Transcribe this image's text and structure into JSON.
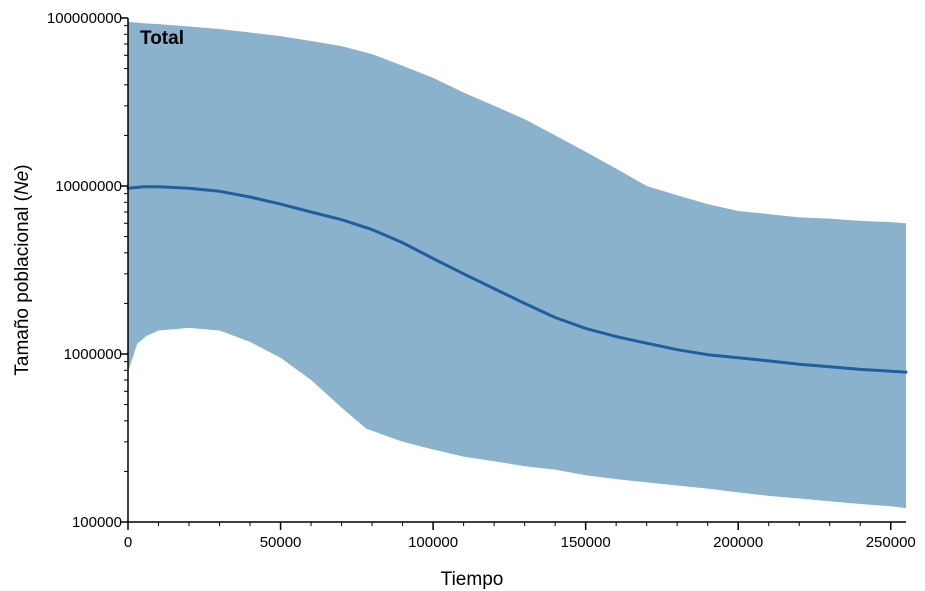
{
  "chart_data": {
    "type": "area",
    "title": "Total",
    "xlabel": "Tiempo",
    "ylabel_prefix": "Tamaño poblacional (",
    "ylabel_italic": "Ne",
    "ylabel_suffix": ")",
    "x_scale": "linear",
    "y_scale": "log",
    "xlim": [
      0,
      255000
    ],
    "ylim": [
      100000,
      100000000
    ],
    "x_ticks": [
      0,
      50000,
      100000,
      150000,
      200000,
      250000
    ],
    "x_tick_labels": [
      "0",
      "50000",
      "100000",
      "150000",
      "200000",
      "250000"
    ],
    "y_ticks": [
      100000,
      1000000,
      10000000,
      100000000
    ],
    "y_tick_labels": [
      "100000",
      "1000000",
      "10000000",
      "100000000"
    ],
    "grid": false,
    "colors": {
      "band": "#8bb2cc",
      "median": "#1f5f9e"
    },
    "series": [
      {
        "kind": "median_line",
        "x": [
          0,
          5000,
          10000,
          20000,
          30000,
          40000,
          50000,
          60000,
          70000,
          80000,
          90000,
          100000,
          110000,
          120000,
          130000,
          140000,
          150000,
          160000,
          170000,
          180000,
          190000,
          200000,
          210000,
          220000,
          230000,
          240000,
          250000,
          255000
        ],
        "y": [
          9700000,
          9900000,
          9900000,
          9700000,
          9300000,
          8600000,
          7800000,
          7000000,
          6300000,
          5500000,
          4600000,
          3700000,
          3000000,
          2450000,
          2000000,
          1650000,
          1420000,
          1270000,
          1160000,
          1060000,
          990000,
          950000,
          910000,
          870000,
          840000,
          810000,
          790000,
          780000
        ]
      },
      {
        "kind": "hpd_upper",
        "x": [
          0,
          5000,
          10000,
          20000,
          30000,
          40000,
          50000,
          60000,
          70000,
          80000,
          90000,
          100000,
          110000,
          120000,
          130000,
          140000,
          150000,
          160000,
          170000,
          180000,
          190000,
          200000,
          210000,
          220000,
          230000,
          240000,
          250000,
          255000
        ],
        "y": [
          95000000,
          93000000,
          92000000,
          89000000,
          86000000,
          82000000,
          78000000,
          73000000,
          68000000,
          61000000,
          52000000,
          44000000,
          36000000,
          30000000,
          25000000,
          20000000,
          16000000,
          12700000,
          10000000,
          8800000,
          7800000,
          7100000,
          6800000,
          6500000,
          6400000,
          6200000,
          6100000,
          6000000
        ]
      },
      {
        "kind": "hpd_lower",
        "x": [
          0,
          3000,
          6000,
          10000,
          20000,
          30000,
          40000,
          50000,
          60000,
          70000,
          78000,
          90000,
          100000,
          110000,
          120000,
          130000,
          140000,
          150000,
          160000,
          170000,
          180000,
          190000,
          200000,
          210000,
          220000,
          230000,
          240000,
          250000,
          255000
        ],
        "y": [
          780000,
          1150000,
          1280000,
          1380000,
          1430000,
          1380000,
          1180000,
          950000,
          700000,
          480000,
          360000,
          300000,
          270000,
          245000,
          230000,
          215000,
          205000,
          190000,
          180000,
          172000,
          165000,
          158000,
          150000,
          143000,
          138000,
          133000,
          128000,
          124000,
          121000
        ]
      }
    ]
  }
}
